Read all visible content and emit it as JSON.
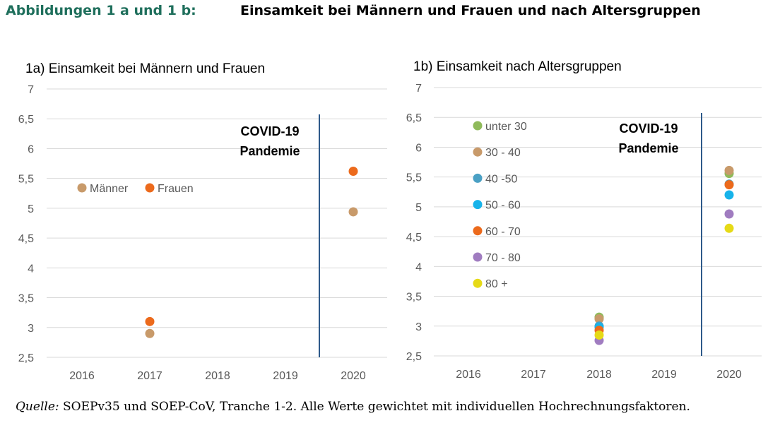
{
  "header": {
    "label": "Abbildungen 1 a und 1 b:",
    "title": "Einsamkeit bei Männern und Frauen und nach Altersgruppen"
  },
  "source": {
    "label": "Quelle:",
    "text": " SOEPv35 und SOEP-CoV, Tranche 1-2. Alle Werte gewichtet mit individuellen Hochrechnungsfaktoren."
  },
  "colors": {
    "grid": "#d9d9d9",
    "covid_line": "#2e5a8a",
    "header_green": "#1f6f5c"
  },
  "chart_data": [
    {
      "type": "scatter",
      "title": "1a) Einsamkeit bei Männern und Frauen",
      "x_categories": [
        "2016",
        "2017",
        "2018",
        "2019",
        "2020"
      ],
      "ylim": [
        2.5,
        7
      ],
      "y_ticks": [
        "2,5",
        "3",
        "3,5",
        "4",
        "4,5",
        "5",
        "5,5",
        "6",
        "6,5",
        "7"
      ],
      "grid": true,
      "legend_placement": "left-middle, horizontal",
      "annotation": [
        "COVID-19",
        "Pandemie"
      ],
      "event_line_between": [
        "2019",
        "2020"
      ],
      "series": [
        {
          "name": "Männer",
          "color": "#c89a6a",
          "points": [
            {
              "x": "2017",
              "y": 2.9
            },
            {
              "x": "2020",
              "y": 4.94
            }
          ]
        },
        {
          "name": "Frauen",
          "color": "#ec6a1c",
          "points": [
            {
              "x": "2017",
              "y": 3.1
            },
            {
              "x": "2020",
              "y": 5.62
            }
          ]
        }
      ]
    },
    {
      "type": "scatter",
      "title": "1b) Einsamkeit nach Altersgruppen",
      "x_categories": [
        "2016",
        "2017",
        "2018",
        "2019",
        "2020"
      ],
      "ylim": [
        2.5,
        7
      ],
      "y_ticks": [
        "2,5",
        "3",
        "3,5",
        "4",
        "4,5",
        "5",
        "5,5",
        "6",
        "6,5",
        "7"
      ],
      "grid": true,
      "legend_placement": "left, vertical",
      "annotation": [
        "COVID-19",
        "Pandemie"
      ],
      "event_line_between": [
        "2019",
        "2020"
      ],
      "series": [
        {
          "name": "unter 30",
          "color": "#8fba5a",
          "points": [
            {
              "x": "2018",
              "y": 3.15
            },
            {
              "x": "2020",
              "y": 5.56
            }
          ]
        },
        {
          "name": "30 - 40",
          "color": "#c89a6a",
          "points": [
            {
              "x": "2018",
              "y": 3.12
            },
            {
              "x": "2020",
              "y": 5.61
            }
          ]
        },
        {
          "name": "40 -50",
          "color": "#4aa0c4",
          "points": [
            {
              "x": "2018",
              "y": 3.0
            },
            {
              "x": "2020",
              "y": 5.38
            }
          ]
        },
        {
          "name": "50 - 60",
          "color": "#17b3ea",
          "points": [
            {
              "x": "2018",
              "y": 2.98
            },
            {
              "x": "2020",
              "y": 5.2
            }
          ]
        },
        {
          "name": "60 - 70",
          "color": "#ec6a1c",
          "points": [
            {
              "x": "2018",
              "y": 2.93
            },
            {
              "x": "2020",
              "y": 5.37
            }
          ]
        },
        {
          "name": "70 - 80",
          "color": "#a07cc0",
          "points": [
            {
              "x": "2018",
              "y": 2.76
            },
            {
              "x": "2020",
              "y": 4.88
            }
          ]
        },
        {
          "name": "80 +",
          "color": "#e6da17",
          "points": [
            {
              "x": "2018",
              "y": 2.85
            },
            {
              "x": "2020",
              "y": 4.64
            }
          ]
        }
      ]
    }
  ]
}
